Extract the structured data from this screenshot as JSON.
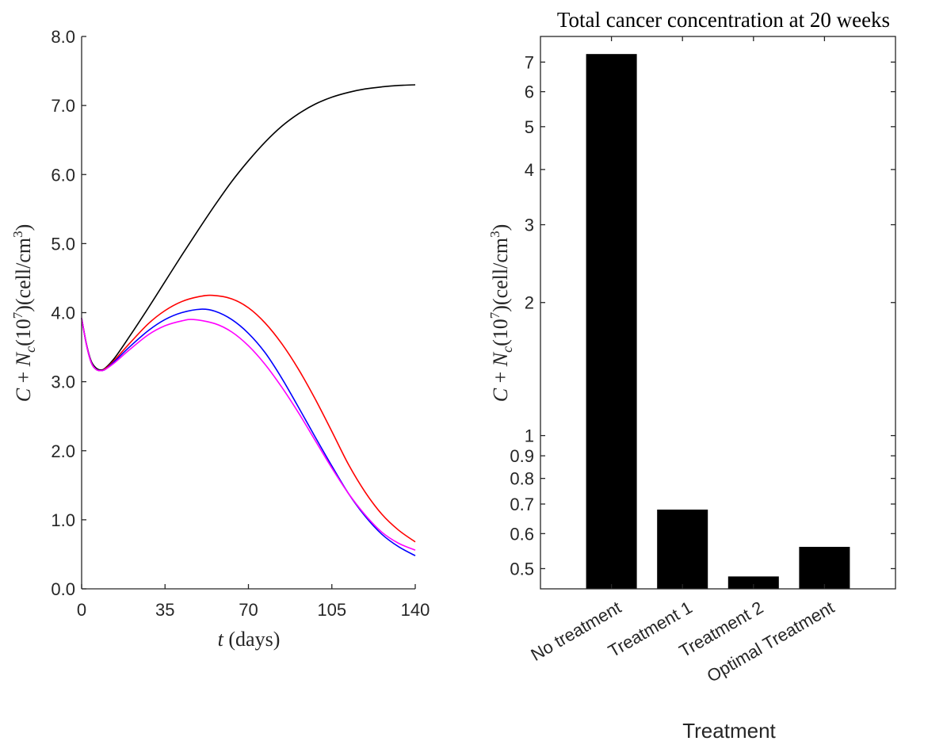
{
  "chart_data": [
    {
      "type": "line",
      "title": "",
      "xlabel": "t (days)",
      "ylabel": "C + Nc(10^7)(cell/cm^3)",
      "xlim": [
        0,
        140
      ],
      "ylim": [
        0,
        8
      ],
      "xticks": [
        "0",
        "35",
        "70",
        "105",
        "140"
      ],
      "yticks": [
        "0.0",
        "1.0",
        "2.0",
        "3.0",
        "4.0",
        "5.0",
        "6.0",
        "7.0",
        "8.0"
      ],
      "grid": false,
      "series": [
        {
          "color": "#000000",
          "x": [
            0,
            2,
            4,
            6,
            8,
            10,
            14,
            20,
            28,
            35,
            42,
            49,
            56,
            63,
            70,
            77,
            84,
            91,
            98,
            105,
            112,
            119,
            126,
            133,
            140
          ],
          "y": [
            3.92,
            3.55,
            3.3,
            3.2,
            3.17,
            3.2,
            3.35,
            3.65,
            4.07,
            4.45,
            4.83,
            5.2,
            5.56,
            5.9,
            6.2,
            6.47,
            6.7,
            6.88,
            7.02,
            7.12,
            7.19,
            7.24,
            7.27,
            7.29,
            7.3
          ]
        },
        {
          "color": "#ff0000",
          "x": [
            0,
            2,
            4,
            6,
            8,
            10,
            14,
            20,
            28,
            35,
            42,
            49,
            55,
            63,
            70,
            77,
            84,
            91,
            98,
            105,
            112,
            119,
            126,
            133,
            140
          ],
          "y": [
            3.92,
            3.54,
            3.28,
            3.18,
            3.16,
            3.19,
            3.32,
            3.55,
            3.84,
            4.03,
            4.16,
            4.23,
            4.25,
            4.2,
            4.07,
            3.85,
            3.55,
            3.18,
            2.75,
            2.28,
            1.8,
            1.4,
            1.08,
            0.85,
            0.68
          ]
        },
        {
          "color": "#0000ff",
          "x": [
            0,
            2,
            4,
            6,
            8,
            10,
            14,
            20,
            28,
            35,
            42,
            50,
            56,
            63,
            70,
            77,
            84,
            91,
            98,
            105,
            112,
            119,
            126,
            133,
            140
          ],
          "y": [
            3.92,
            3.54,
            3.28,
            3.18,
            3.16,
            3.18,
            3.3,
            3.5,
            3.74,
            3.9,
            4.0,
            4.05,
            4.02,
            3.9,
            3.7,
            3.42,
            3.05,
            2.63,
            2.2,
            1.78,
            1.38,
            1.05,
            0.79,
            0.61,
            0.48
          ]
        },
        {
          "color": "#ff00ff",
          "x": [
            0,
            2,
            4,
            6,
            8,
            10,
            14,
            20,
            28,
            35,
            42,
            47,
            56,
            63,
            70,
            77,
            84,
            91,
            98,
            105,
            112,
            119,
            126,
            133,
            140
          ],
          "y": [
            3.92,
            3.54,
            3.28,
            3.18,
            3.16,
            3.18,
            3.28,
            3.46,
            3.68,
            3.81,
            3.88,
            3.9,
            3.84,
            3.72,
            3.52,
            3.25,
            2.92,
            2.55,
            2.15,
            1.75,
            1.38,
            1.07,
            0.82,
            0.66,
            0.56
          ]
        }
      ]
    },
    {
      "type": "bar",
      "title": "Total cancer concentration at 20 weeks",
      "xlabel": "Treatment",
      "ylabel": "C + Nc(10^7)(cell/cm^3)",
      "yscale": "log",
      "ylim": [
        0.45,
        8.0
      ],
      "yticks": [
        "0.5",
        "0.6",
        "0.7",
        "0.8",
        "0.9",
        "1",
        "2",
        "3",
        "4",
        "5",
        "6",
        "7"
      ],
      "categories": [
        "No treatment",
        "Treatment 1",
        "Treatment 2",
        "Optimal Treatment"
      ],
      "values": [
        7.3,
        0.68,
        0.48,
        0.56
      ],
      "color": "#000000",
      "grid": false
    }
  ]
}
